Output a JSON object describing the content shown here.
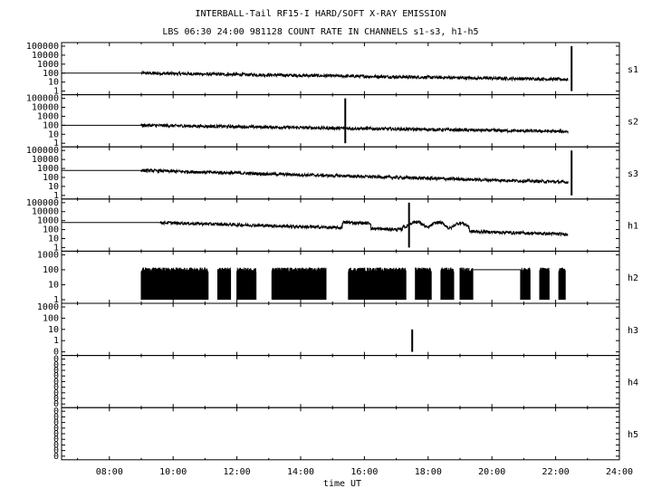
{
  "chart_data": {
    "type": "line",
    "title": "INTERBALL-Tail RF15-I HARD/SOFT X-RAY EMISSION",
    "subtitle": "LBS 06:30 24:00 981128  COUNT RATE IN CHANNELS s1-s3, h1-h5",
    "xlabel": "time UT",
    "x_ticks": [
      "08:00",
      "10:00",
      "12:00",
      "14:00",
      "16:00",
      "18:00",
      "20:00",
      "22:00",
      "24:00"
    ],
    "xlim_hours": [
      6.5,
      24
    ],
    "y_scale": "log",
    "panels": [
      {
        "name": "s1",
        "ytick_labels": [
          "100000",
          "10000",
          "1000",
          "100",
          "10",
          "1"
        ]
      },
      {
        "name": "s2",
        "ytick_labels": [
          "100000",
          "10000",
          "1000",
          "100",
          "10",
          "1"
        ]
      },
      {
        "name": "s3",
        "ytick_labels": [
          "100000",
          "10000",
          "1000",
          "100",
          "10",
          "1"
        ]
      },
      {
        "name": "h1",
        "ytick_labels": [
          "100000",
          "10000",
          "1000",
          "100",
          "10",
          "1"
        ]
      },
      {
        "name": "h2",
        "ytick_labels": [
          "1000",
          "100",
          "10",
          "1"
        ]
      },
      {
        "name": "h3",
        "ytick_labels": [
          "1000",
          "100",
          "10",
          "1",
          "0"
        ]
      },
      {
        "name": "h4",
        "ytick_labels": [
          "0",
          "0",
          "0",
          "0",
          "0",
          "0",
          "0",
          "0",
          "0"
        ]
      },
      {
        "name": "h5",
        "ytick_labels": [
          "0",
          "0",
          "0",
          "0",
          "0",
          "0",
          "0",
          "0",
          "0"
        ]
      }
    ],
    "series_summary": {
      "s1": {
        "level_start": 100,
        "level_end": 20,
        "data_start_hour": 9.0,
        "spike_hour": 22.5
      },
      "s2": {
        "level_start": 100,
        "level_end": 20,
        "data_start_hour": 9.0,
        "spike_hour": 15.4
      },
      "s3": {
        "level_start": 600,
        "level_end": 30,
        "data_start_hour": 9.0,
        "spike_hour": 22.5
      },
      "h1": {
        "level_start": 600,
        "level_end": 30,
        "data_start_hour": 9.6,
        "spike_hour": 17.4
      },
      "h2": {
        "level_start": 100,
        "level_end": 100,
        "data_start_hour": 9.0
      },
      "h3": {
        "spike_hour": 17.5,
        "spike_value": 100
      }
    }
  }
}
